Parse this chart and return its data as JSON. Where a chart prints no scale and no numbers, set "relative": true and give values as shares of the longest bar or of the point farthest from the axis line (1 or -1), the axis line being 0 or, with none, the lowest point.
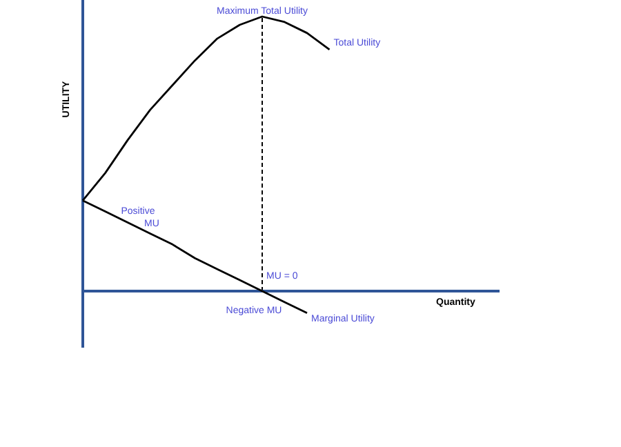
{
  "chart_data": {
    "type": "line",
    "relative": true,
    "ylabel": "UTILITY",
    "categories": [
      null,
      null,
      null,
      null,
      null,
      null,
      null,
      null,
      null,
      null,
      null,
      null
    ],
    "series": [
      {
        "name": "Total Utility",
        "color": "#000000",
        "values": [
          0.33,
          0.43,
          0.55,
          0.66,
          0.75,
          0.84,
          0.92,
          0.97,
          1,
          0.98,
          0.94,
          0.88
        ]
      },
      {
        "name": "Marginal Utility",
        "color": "#000000",
        "values": [
          0.33,
          0.29,
          0.25,
          0.21,
          0.17,
          0.12,
          0.08,
          0.04,
          0,
          -0.04,
          -0.08,
          null
        ]
      }
    ],
    "ref_lines": [
      {
        "axis": "y",
        "value": 0,
        "color": "#2f5597"
      }
    ],
    "annotations": [
      "Maximum Total Utility",
      "Positive MU",
      "MU = 0",
      "Negative MU",
      "Quantity"
    ]
  }
}
